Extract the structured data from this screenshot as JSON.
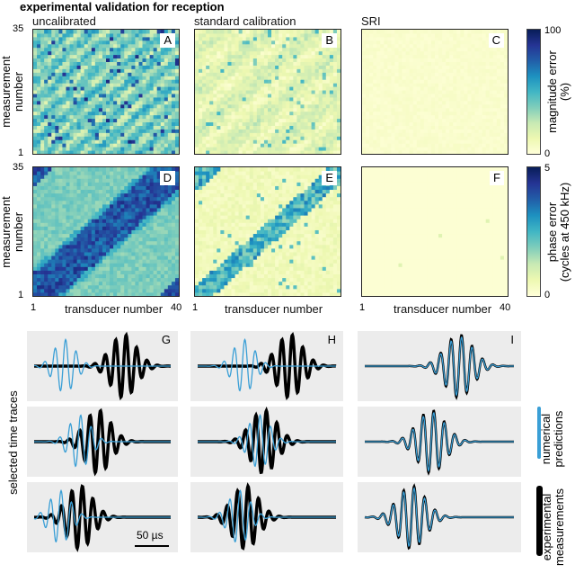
{
  "figure_title": "experimental validation for reception",
  "column_titles": [
    "uncalibrated",
    "standard calibration",
    "SRI"
  ],
  "chart_data": [
    {
      "type": "heatmap",
      "panel": "A",
      "column": "uncalibrated",
      "quantity": "magnitude error",
      "xlabel": "transducer number",
      "ylabel": "measurement number",
      "xlim": [
        1,
        40
      ],
      "ylim": [
        1,
        35
      ],
      "clim": [
        0,
        100
      ],
      "colormap": "YlGnBu",
      "pattern": "diagonal-bands",
      "mean_level": 0.4
    },
    {
      "type": "heatmap",
      "panel": "B",
      "column": "standard calibration",
      "quantity": "magnitude error",
      "xlim": [
        1,
        40
      ],
      "ylim": [
        1,
        35
      ],
      "clim": [
        0,
        100
      ],
      "colormap": "YlGnBu",
      "pattern": "diagonal-bands",
      "mean_level": 0.15
    },
    {
      "type": "heatmap",
      "panel": "C",
      "column": "SRI",
      "quantity": "magnitude error",
      "xlim": [
        1,
        40
      ],
      "ylim": [
        1,
        35
      ],
      "clim": [
        0,
        100
      ],
      "colormap": "YlGnBu",
      "pattern": "uniform",
      "mean_level": 0.04
    },
    {
      "type": "heatmap",
      "panel": "D",
      "column": "uncalibrated",
      "quantity": "phase error",
      "xlabel": "transducer number",
      "ylabel": "measurement number",
      "xlim": [
        1,
        40
      ],
      "ylim": [
        1,
        35
      ],
      "clim": [
        0,
        5
      ],
      "colormap": "YlGnBu",
      "pattern": "diagonal-band",
      "mean_level": 0.45
    },
    {
      "type": "heatmap",
      "panel": "E",
      "column": "standard calibration",
      "quantity": "phase error",
      "xlabel": "transducer number",
      "xlim": [
        1,
        40
      ],
      "ylim": [
        1,
        35
      ],
      "clim": [
        0,
        5
      ],
      "colormap": "YlGnBu",
      "pattern": "diagonal-band",
      "mean_level": 0.15
    },
    {
      "type": "heatmap",
      "panel": "F",
      "column": "SRI",
      "quantity": "phase error",
      "xlabel": "transducer number",
      "xlim": [
        1,
        40
      ],
      "ylim": [
        1,
        35
      ],
      "clim": [
        0,
        5
      ],
      "colormap": "YlGnBu",
      "pattern": "uniform",
      "mean_level": 0.02
    },
    {
      "type": "line",
      "panels": [
        "G",
        "H",
        "I"
      ],
      "ylabel": "selected time traces",
      "series": [
        {
          "name": "numerical predictions",
          "color": "#3a9fd6"
        },
        {
          "name": "experimental measurements",
          "color": "#000000"
        }
      ],
      "scale_bar": "50 µs"
    }
  ],
  "axis": {
    "y_min": "1",
    "y_max": "35",
    "x_min": "1",
    "x_max": "40",
    "xlabel": "transducer number",
    "ylabel": "measurement number"
  },
  "colorbars": [
    {
      "label": "magnitude error (%)",
      "label1": "magnitude error",
      "label2": "(%)",
      "min": "0",
      "max": "100"
    },
    {
      "label1": "phase error",
      "label2": "(cycles at 450 kHz)",
      "min": "0",
      "max": "5"
    }
  ],
  "panel_labels": [
    "A",
    "B",
    "C",
    "D",
    "E",
    "F",
    "G",
    "H",
    "I"
  ],
  "traces_ylabel": "selected time traces",
  "legend": {
    "numerical": "numerical predictions",
    "numerical1": "numerical",
    "numerical2": "predictions",
    "experimental1": "experimental",
    "experimental2": "measurements"
  },
  "scale_bar": "50 µs",
  "colors": {
    "blue_trace": "#3a9fd6",
    "black_trace": "#000000",
    "panel_bg": "#ececec"
  }
}
